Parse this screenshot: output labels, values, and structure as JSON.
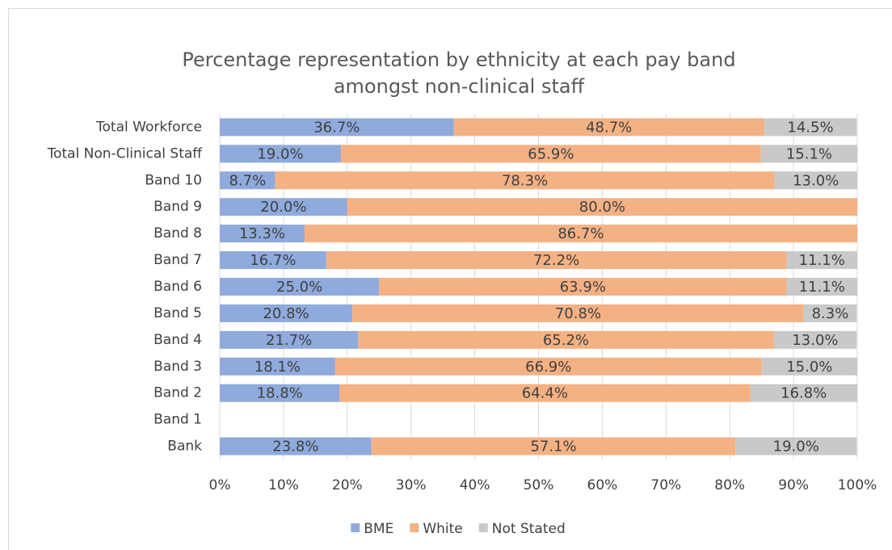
{
  "chart_data": {
    "type": "stacked-bar-horizontal",
    "title": [
      "Percentage representation by ethnicity at each pay band",
      "amongst non-clinical staff"
    ],
    "categories": [
      "Total Workforce",
      "Total Non-Clinical Staff",
      "Band 10",
      "Band 9",
      "Band 8",
      "Band 7",
      "Band 6",
      "Band 5",
      "Band 4",
      "Band 3",
      "Band 2",
      "Band 1",
      "Bank"
    ],
    "series": [
      {
        "name": "BME",
        "color": "#8faadc",
        "values": [
          36.7,
          19.0,
          8.7,
          20.0,
          13.3,
          16.7,
          25.0,
          20.8,
          21.7,
          18.1,
          18.8,
          null,
          23.8
        ],
        "value_labels": [
          "36.7%",
          "19.0%",
          "8.7%",
          "20.0%",
          "13.3%",
          "16.7%",
          "25.0%",
          "20.8%",
          "21.7%",
          "18.1%",
          "18.8%",
          null,
          "23.8%"
        ]
      },
      {
        "name": "White",
        "color": "#f4b183",
        "values": [
          48.7,
          65.9,
          78.3,
          80.0,
          86.7,
          72.2,
          63.9,
          70.8,
          65.2,
          66.9,
          64.4,
          null,
          57.1
        ],
        "value_labels": [
          "48.7%",
          "65.9%",
          "78.3%",
          "80.0%",
          "86.7%",
          "72.2%",
          "63.9%",
          "70.8%",
          "65.2%",
          "66.9%",
          "64.4%",
          null,
          "57.1%"
        ]
      },
      {
        "name": "Not Stated",
        "color": "#c9c9c9",
        "values": [
          14.5,
          15.1,
          13.0,
          null,
          null,
          11.1,
          11.1,
          8.3,
          13.0,
          15.0,
          16.8,
          null,
          19.0
        ],
        "value_labels": [
          "14.5%",
          "15.1%",
          "13.0%",
          null,
          null,
          "11.1%",
          "11.1%",
          "8.3%",
          "13.0%",
          "15.0%",
          "16.8%",
          null,
          "19.0%"
        ]
      }
    ],
    "xlim": [
      0,
      100
    ],
    "xticks": [
      {
        "value": 0,
        "label": "0%"
      },
      {
        "value": 10,
        "label": "10%"
      },
      {
        "value": 20,
        "label": "20%"
      },
      {
        "value": 30,
        "label": "30%"
      },
      {
        "value": 40,
        "label": "40%"
      },
      {
        "value": 50,
        "label": "50%"
      },
      {
        "value": 60,
        "label": "60%"
      },
      {
        "value": 70,
        "label": "70%"
      },
      {
        "value": 80,
        "label": "80%"
      },
      {
        "value": 90,
        "label": "90%"
      },
      {
        "value": 100,
        "label": "100%"
      }
    ],
    "grid": true,
    "legend": "bottom"
  }
}
